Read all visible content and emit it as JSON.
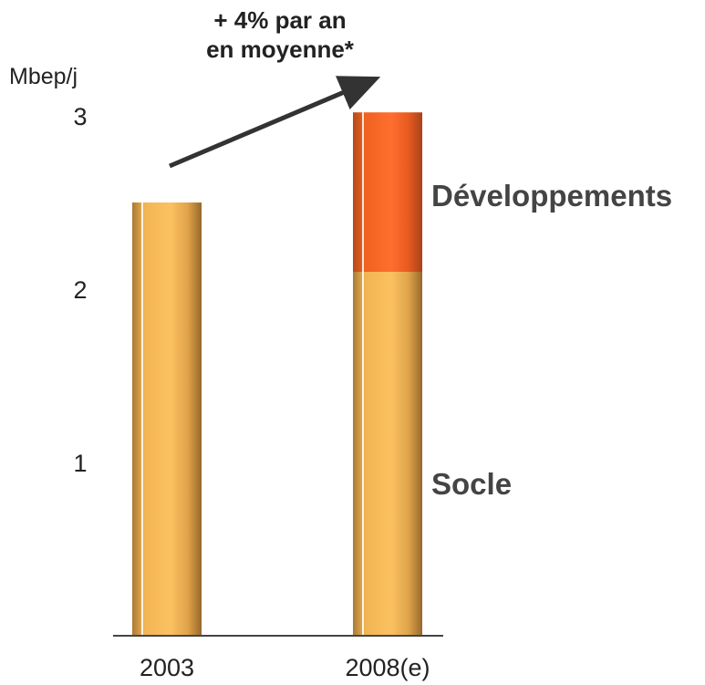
{
  "chart_data": {
    "type": "bar",
    "stacked": true,
    "categories": [
      "2003",
      "2008(e)"
    ],
    "series": [
      {
        "name": "Socle",
        "values": [
          2.5,
          2.1
        ],
        "color": "#F9BC5A"
      },
      {
        "name": "Développements",
        "values": [
          0,
          0.92
        ],
        "color": "#FF6B2C"
      }
    ],
    "ylabel": "Mbep/j",
    "yticks": [
      1,
      2,
      3
    ],
    "ylim": [
      0,
      3
    ],
    "grid": false,
    "annotation": {
      "lines": [
        "+ 4% par an",
        "en moyenne*"
      ]
    }
  }
}
